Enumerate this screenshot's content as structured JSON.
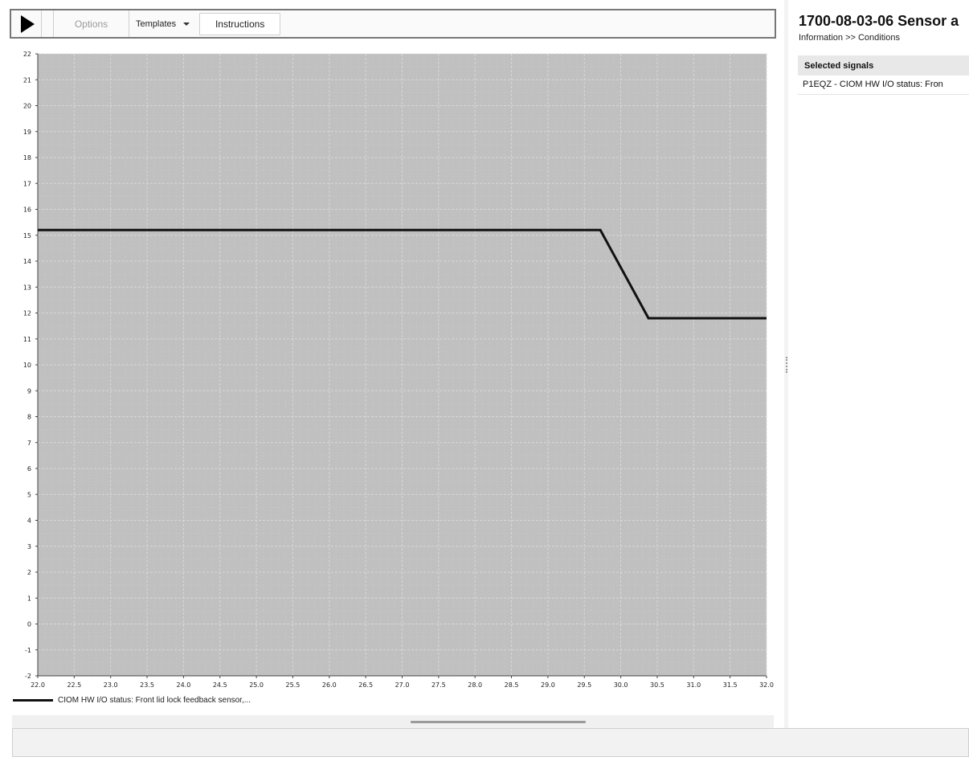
{
  "toolbar": {
    "play_icon": "play-icon",
    "options_label": "Options",
    "templates_label": "Templates",
    "instructions_label": "Instructions"
  },
  "right_panel": {
    "title": "1700-08-03-06 Sensor a",
    "breadcrumb": "Information >> Conditions",
    "selected_signals_header": "Selected signals",
    "signals": [
      "P1EQZ - CIOM HW I/O status: Fron"
    ]
  },
  "chart_data": {
    "type": "line",
    "title": "",
    "xlabel": "",
    "ylabel": "",
    "xlim": [
      22.0,
      32.0
    ],
    "ylim": [
      -2,
      22
    ],
    "grid": true,
    "background": "#c0c0c0",
    "line_color": "#111111",
    "x_ticks": [
      "22.0",
      "22.5",
      "23.0",
      "23.5",
      "24.0",
      "24.5",
      "25.0",
      "25.5",
      "26.0",
      "26.5",
      "27.0",
      "27.5",
      "28.0",
      "28.5",
      "29.0",
      "29.5",
      "30.0",
      "30.5",
      "31.0",
      "31.5",
      "32.0"
    ],
    "y_ticks": [
      "22",
      "21",
      "20",
      "19",
      "18",
      "17",
      "16",
      "15",
      "14",
      "13",
      "12",
      "11",
      "10",
      "9",
      "8",
      "7",
      "6",
      "5",
      "4",
      "3",
      "2",
      "1",
      "0",
      "-1",
      "-2"
    ],
    "legend_position": "bottom-left",
    "series": [
      {
        "name": "CIOM HW I/O status: Front lid lock feedback sensor,...",
        "x": [
          22.0,
          29.72,
          30.38,
          32.0
        ],
        "y": [
          15.2,
          15.2,
          11.8,
          11.8
        ]
      }
    ]
  }
}
